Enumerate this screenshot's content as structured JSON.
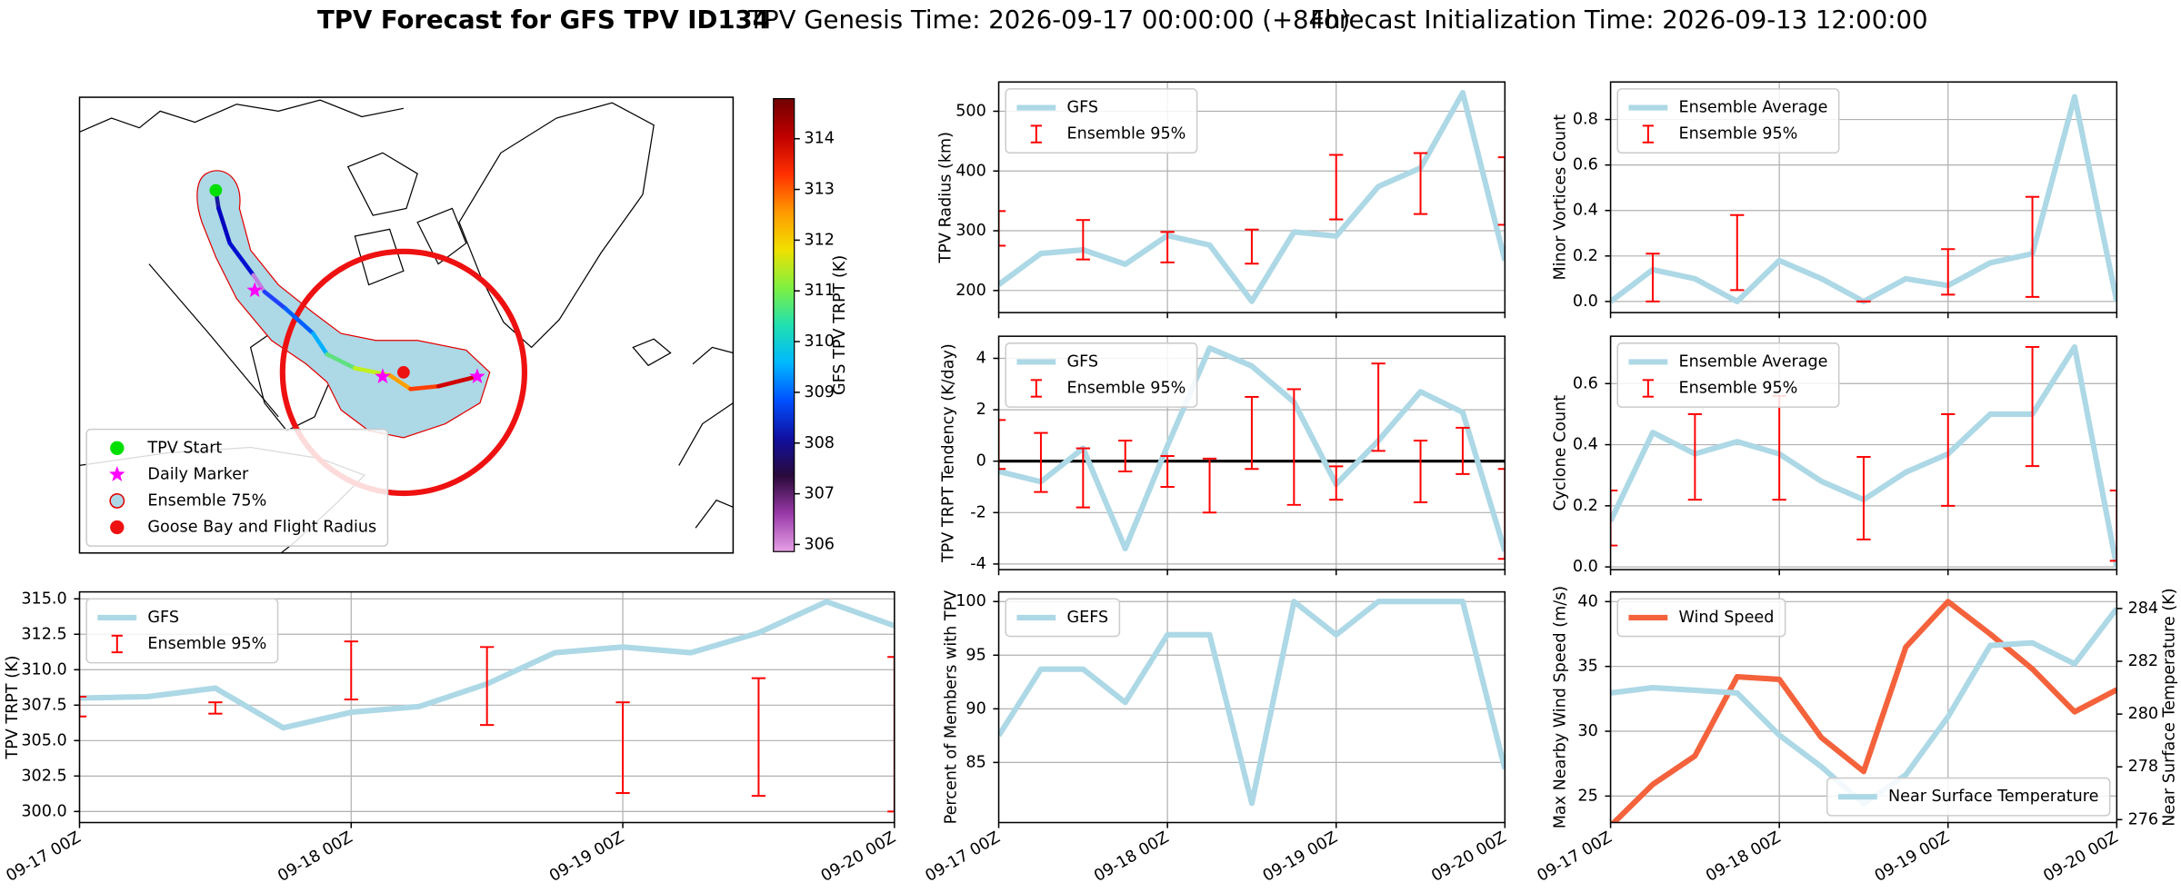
{
  "title": "TPV Forecast for GFS TPV ID134",
  "genesis": "TPV Genesis Time: 2026-09-17 00:00:00 (+84h)",
  "init": "Forecast Initialization Time: 2026-09-13 12:00:00",
  "chart_data": [
    {
      "type": "map",
      "legend": {
        "loc": "lower left",
        "entries": [
          {
            "name": "TPV Start",
            "marker": "circle",
            "color": "#00e000"
          },
          {
            "name": "Daily Marker",
            "marker": "star",
            "color": "#ff00ff"
          },
          {
            "name": "Ensemble 75%",
            "marker": "circle",
            "color": "#add8e6",
            "edgecolor": "#e00000"
          },
          {
            "name": "Goose Bay and Flight Radius",
            "marker": "circle",
            "color": "#ee1111"
          }
        ]
      },
      "colorbar": {
        "label": "GFS TPV TRPT (K)",
        "lim": [
          305.86,
          314.79
        ],
        "ticks": [
          306,
          307,
          308,
          309,
          310,
          311,
          312,
          313,
          314
        ],
        "colors": [
          "#e6a0e6",
          "#9a3aa8",
          "#2a0a3a",
          "#1010a0",
          "#0050ff",
          "#00b8ff",
          "#20e0b0",
          "#80f040",
          "#f0e000",
          "#ff9900",
          "#ff3000",
          "#c00000",
          "#700000"
        ]
      }
    },
    {
      "type": "line",
      "ylabel": "TPV Radius (km)",
      "x": [
        0,
        6,
        12,
        18,
        24,
        30,
        36,
        42,
        48,
        54,
        60,
        66,
        72
      ],
      "series": [
        {
          "name": "GFS",
          "color": "#add8e6",
          "values": [
            210,
            262,
            268,
            244,
            292,
            276,
            182,
            298,
            291,
            374,
            405,
            531,
            250
          ]
        }
      ],
      "errorbars": {
        "name": "Ensemble 95%",
        "color": "#ff0000",
        "x": [
          0,
          12,
          24,
          36,
          48,
          60,
          72
        ],
        "low": [
          275,
          252,
          247,
          245,
          319,
          328,
          310
        ],
        "high": [
          333,
          318,
          298,
          302,
          427,
          430,
          423
        ]
      },
      "xlim": [
        0,
        72
      ],
      "xticks": [
        0,
        24,
        48,
        72
      ],
      "ylim": [
        163,
        549
      ],
      "yticks": [
        200,
        300,
        400,
        500
      ],
      "grid": true,
      "legend": "upper left"
    },
    {
      "type": "line",
      "ylabel": "TPV TRPT Tendency (K/day)",
      "x": [
        0,
        6,
        12,
        18,
        24,
        30,
        36,
        42,
        48,
        54,
        60,
        66,
        72
      ],
      "series": [
        {
          "name": "GFS",
          "color": "#add8e6",
          "values": [
            -0.4,
            -0.8,
            0.5,
            -3.4,
            0.6,
            4.4,
            3.7,
            2.3,
            -0.9,
            0.8,
            2.7,
            1.9,
            -3.5
          ]
        }
      ],
      "errorbars": {
        "name": "Ensemble 95%",
        "color": "#ff0000",
        "x": [
          0,
          6,
          12,
          18,
          24,
          30,
          36,
          42,
          48,
          54,
          60,
          66,
          72
        ],
        "low": [
          -0.3,
          -1.2,
          -1.8,
          -0.4,
          -1.0,
          -2.0,
          -0.3,
          -1.7,
          -1.5,
          0.4,
          -1.6,
          -0.5,
          -3.8
        ],
        "high": [
          1.6,
          1.1,
          0.5,
          0.8,
          0.2,
          0.1,
          2.5,
          2.8,
          -0.2,
          3.8,
          0.8,
          1.3,
          -0.3
        ]
      },
      "hline": 0,
      "xlim": [
        0,
        72
      ],
      "xticks": [
        0,
        24,
        48,
        72
      ],
      "ylim": [
        -4.22,
        4.86
      ],
      "yticks": [
        -4,
        -2,
        0,
        2,
        4
      ],
      "grid": true,
      "legend": "upper left"
    },
    {
      "type": "line",
      "ylabel": "Minor Vortices Count",
      "x": [
        0,
        6,
        12,
        18,
        24,
        30,
        36,
        42,
        48,
        54,
        60,
        66,
        72
      ],
      "series": [
        {
          "name": "Ensemble Average",
          "color": "#add8e6",
          "values": [
            0.0,
            0.14,
            0.1,
            0.0,
            0.18,
            0.1,
            0.0,
            0.1,
            0.07,
            0.17,
            0.21,
            0.9,
            0.0
          ]
        }
      ],
      "errorbars": {
        "name": "Ensemble 95%",
        "color": "#ff0000",
        "x": [
          6,
          18,
          36,
          48,
          60
        ],
        "low": [
          0.0,
          0.05,
          0.0,
          0.03,
          0.02
        ],
        "high": [
          0.21,
          0.38,
          0.0,
          0.23,
          0.46
        ]
      },
      "xlim": [
        0,
        72
      ],
      "xticks": [
        0,
        24,
        48,
        72
      ],
      "ylim": [
        -0.049,
        0.965
      ],
      "yticks": [
        {
          "value": 0,
          "label": "0.0"
        },
        0.2,
        0.4,
        0.6,
        0.8
      ],
      "grid": true,
      "legend": "upper left"
    },
    {
      "type": "line",
      "ylabel": "Cyclone Count",
      "x": [
        0,
        6,
        12,
        18,
        24,
        30,
        36,
        42,
        48,
        54,
        60,
        66,
        72
      ],
      "series": [
        {
          "name": "Ensemble Average",
          "color": "#add8e6",
          "values": [
            0.15,
            0.44,
            0.37,
            0.41,
            0.37,
            0.28,
            0.22,
            0.31,
            0.37,
            0.5,
            0.5,
            0.72,
            0.0
          ]
        }
      ],
      "errorbars": {
        "name": "Ensemble 95%",
        "color": "#ff0000",
        "x": [
          0,
          12,
          24,
          36,
          48,
          60,
          72
        ],
        "low": [
          0.07,
          0.22,
          0.22,
          0.09,
          0.2,
          0.33,
          0.02
        ],
        "high": [
          0.25,
          0.5,
          0.56,
          0.36,
          0.5,
          0.72,
          0.25
        ]
      },
      "xlim": [
        0,
        72
      ],
      "xticks": [
        0,
        24,
        48,
        72
      ],
      "ylim": [
        -0.009,
        0.755
      ],
      "yticks": [
        {
          "value": 0,
          "label": "0.0"
        },
        0.2,
        0.4,
        0.6
      ],
      "grid": true,
      "legend": "upper left"
    },
    {
      "type": "line",
      "ylabel": "TPV TRPT (K)",
      "x": [
        0,
        6,
        12,
        18,
        24,
        30,
        36,
        42,
        48,
        54,
        60,
        66,
        72
      ],
      "series": [
        {
          "name": "GFS",
          "color": "#add8e6",
          "values": [
            308.0,
            308.1,
            308.7,
            305.9,
            307.0,
            307.4,
            309.0,
            311.2,
            311.6,
            311.2,
            312.6,
            314.8,
            313.1
          ]
        }
      ],
      "errorbars": {
        "name": "Ensemble 95%",
        "color": "#ff0000",
        "x": [
          0,
          12,
          24,
          36,
          48,
          60,
          72
        ],
        "low": [
          306.7,
          306.9,
          307.9,
          306.1,
          301.3,
          301.1,
          300.0
        ],
        "high": [
          308.1,
          307.7,
          312.0,
          311.6,
          307.7,
          309.4,
          310.9
        ]
      },
      "xlim": [
        0,
        72
      ],
      "xticks": [
        {
          "value": 0,
          "label": "09-17 00Z"
        },
        {
          "value": 24,
          "label": "09-18 00Z"
        },
        {
          "value": 48,
          "label": "09-19 00Z"
        },
        {
          "value": 72,
          "label": "09-20 00Z"
        }
      ],
      "ylim": [
        299.22,
        315.49
      ],
      "yticks": [
        {
          "value": 300,
          "label": "300.0"
        },
        302.5,
        {
          "value": 305,
          "label": "305.0"
        },
        307.5,
        {
          "value": 310,
          "label": "310.0"
        },
        312.5,
        {
          "value": 315,
          "label": "315.0"
        }
      ],
      "grid": true,
      "legend": "upper left"
    },
    {
      "type": "line",
      "ylabel": "Percent of Members with TPV",
      "x": [
        0,
        6,
        12,
        18,
        24,
        30,
        36,
        42,
        48,
        54,
        60,
        66,
        72
      ],
      "series": [
        {
          "name": "GEFS",
          "color": "#add8e6",
          "values": [
            87.5,
            93.7,
            93.7,
            90.6,
            96.9,
            96.9,
            81.2,
            100,
            96.9,
            100,
            100,
            100,
            84.4
          ]
        }
      ],
      "xlim": [
        0,
        72
      ],
      "xticks": [
        {
          "value": 0,
          "label": "09-17 00Z"
        },
        {
          "value": 24,
          "label": "09-18 00Z"
        },
        {
          "value": 48,
          "label": "09-19 00Z"
        },
        {
          "value": 72,
          "label": "09-20 00Z"
        }
      ],
      "ylim": [
        79.4,
        100.9
      ],
      "yticks": [
        85,
        90,
        95,
        100
      ],
      "grid": true,
      "legend": "upper left"
    },
    {
      "type": "line",
      "ylabel": "Max Nearby Wind Speed (m/s)",
      "ylabel_color": "#f4623c",
      "y2label": "Near Surface Temperature (K)",
      "y2label_color": "#4169e1",
      "x": [
        0,
        6,
        12,
        18,
        24,
        30,
        36,
        42,
        48,
        54,
        60,
        66,
        72
      ],
      "series": [
        {
          "name": "Wind Speed",
          "color": "#f4623c",
          "values": [
            22.7,
            25.9,
            28.1,
            34.2,
            34.0,
            29.5,
            26.9,
            36.5,
            40.0,
            37.5,
            34.8,
            31.5,
            33.2
          ],
          "legend": "upper left"
        },
        {
          "name": "Near Surface Temperature",
          "color": "#add8e6",
          "axis": "y2",
          "values": [
            280.8,
            281.0,
            280.9,
            280.8,
            279.2,
            278.0,
            276.6,
            277.7,
            279.9,
            282.6,
            282.7,
            281.9,
            284.0
          ],
          "legend": "lower right"
        }
      ],
      "xlim": [
        0,
        72
      ],
      "xticks": [
        {
          "value": 0,
          "label": "09-17 00Z"
        },
        {
          "value": 24,
          "label": "09-18 00Z"
        },
        {
          "value": 48,
          "label": "09-19 00Z"
        },
        {
          "value": 72,
          "label": "09-20 00Z"
        }
      ],
      "ylim": [
        22.96,
        40.75
      ],
      "yticks": [
        25,
        30,
        35,
        40
      ],
      "y2lim": [
        275.89,
        284.63
      ],
      "y2ticks": [
        276,
        278,
        280,
        282,
        284
      ],
      "grid": true
    }
  ]
}
